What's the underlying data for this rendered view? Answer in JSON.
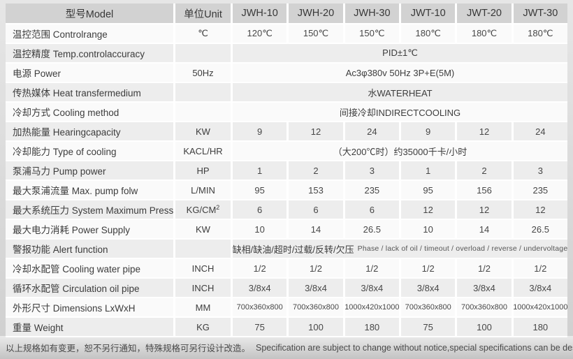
{
  "colors": {
    "page_bg_top": "#e6e6e6",
    "page_bg_bottom": "#cfcfcf",
    "header_bg": "#d2d2d2",
    "row_light": "#fafafa",
    "row_dark": "#ededed",
    "separator": "#ffffff",
    "text": "#3d3d3d"
  },
  "table": {
    "header": {
      "model_label": "型号Model",
      "unit_label": "单位Unit",
      "model_columns": [
        "JWH-10",
        "JWH-20",
        "JWH-30",
        "JWT-10",
        "JWT-20",
        "JWT-30"
      ]
    },
    "rows": [
      {
        "label": "温控范围 Controlrange",
        "unit": "℃",
        "values": [
          "120℃",
          "150℃",
          "150℃",
          "180℃",
          "180℃",
          "180℃"
        ]
      },
      {
        "label": "温控精度 Temp.controlaccuracy",
        "unit": "",
        "span": "PID±1℃"
      },
      {
        "label": "电源 Power",
        "unit": "50Hz",
        "span": "Ac3φ380v 50Hz 3P+E(5M)"
      },
      {
        "label": "传热媒体 Heat transfermedium",
        "unit": "",
        "span": "水WATERHEAT"
      },
      {
        "label": "冷却方式 Cooling method",
        "unit": "",
        "span": "间接冷却INDIRECTCOOLING"
      },
      {
        "label": "加热能量 Hearingcapacity",
        "unit": "KW",
        "values": [
          "9",
          "12",
          "24",
          "9",
          "12",
          "24"
        ]
      },
      {
        "label": "冷却能力 Type of cooling",
        "unit": "KACL/HR",
        "span": "（大200℃时）约35000千卡/小时"
      },
      {
        "label": "泵浦马力 Pump power",
        "unit": "HP",
        "values": [
          "1",
          "2",
          "3",
          "1",
          "2",
          "3"
        ]
      },
      {
        "label": "最大泵浦流量 Max. pump folw",
        "unit": "L/MIN",
        "values": [
          "95",
          "153",
          "235",
          "95",
          "156",
          "235"
        ]
      },
      {
        "label": "最大系统压力 System Maximum Pressure",
        "unit": "KG/CM²",
        "values": [
          "6",
          "6",
          "6",
          "12",
          "12",
          "12"
        ]
      },
      {
        "label": "最大电力消耗 Power Supply",
        "unit": "KW",
        "values": [
          "10",
          "14",
          "26.5",
          "10",
          "14",
          "26.5"
        ]
      },
      {
        "label": "警报功能 Alert function",
        "unit": "",
        "span_cn": "缺相/缺油/超时/过载/反转/欠压",
        "span_en": "Phase / lack of oil / timeout / overload / reverse / undervoltage"
      },
      {
        "label": "冷却水配管 Cooling water pipe",
        "unit": "INCH",
        "values": [
          "1/2",
          "1/2",
          "1/2",
          "1/2",
          "1/2",
          "1/2"
        ]
      },
      {
        "label": "循环水配管 Circulation oil pipe",
        "unit": "INCH",
        "values": [
          "3/8x4",
          "3/8x4",
          "3/8x4",
          "3/8x4",
          "3/8x4",
          "3/8x4"
        ]
      },
      {
        "label": "外形尺寸 Dimensions LxWxH",
        "unit": "MM",
        "values": [
          "700x360x800",
          "700x360x800",
          "1000x420x1000",
          "700x360x800",
          "700x360x800",
          "1000x420x1000"
        ]
      },
      {
        "label": "重量 Weight",
        "unit": "KG",
        "values": [
          "75",
          "100",
          "180",
          "75",
          "100",
          "180"
        ]
      }
    ]
  },
  "footer": {
    "note_cn": "以上规格如有变更，恕不另行通知，特殊规格可另行设计改造。",
    "note_en": "Specification are subject to change without notice,special specifications can be designed transformation."
  }
}
